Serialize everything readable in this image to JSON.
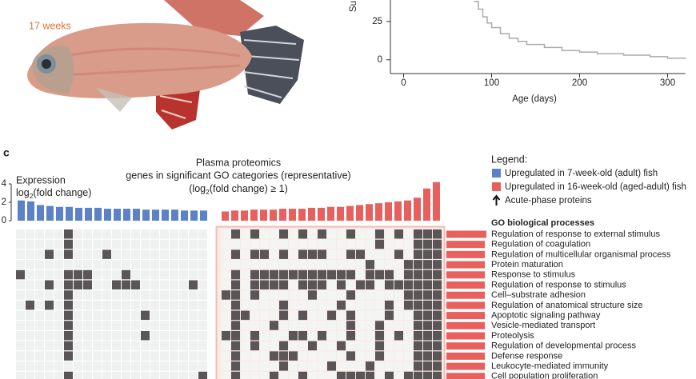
{
  "panel_a": {
    "age_label": "17 weeks"
  },
  "survival": {
    "type": "line",
    "y_axis_label": "Su",
    "x_axis_label": "Age (days)",
    "x": [
      80,
      85,
      90,
      95,
      100,
      110,
      120,
      130,
      140,
      160,
      180,
      200,
      220,
      250,
      280,
      300,
      320
    ],
    "values": [
      38,
      33,
      28,
      24,
      21,
      17,
      14,
      12,
      10,
      8,
      6,
      5,
      4,
      3,
      2,
      1,
      0.5
    ],
    "color": "#aaaaaa",
    "xlim": [
      -15,
      320
    ],
    "ylim": [
      -9,
      39
    ],
    "xticks": [
      0,
      100,
      200,
      300
    ],
    "yticks": [
      0,
      25
    ]
  },
  "panel_c": {
    "panel_label": "c",
    "title_lines": [
      "Plasma proteomics",
      "genes in significant GO categories (representative)"
    ],
    "title_fc": {
      "pre": "(log",
      "sub": "2",
      "post": "(fold change) ≥ 1)"
    },
    "y_label_line1": "Expression",
    "y_label_line2": {
      "pre": "log",
      "sub": "2",
      "post": "(fold change)"
    },
    "ylim": [
      0,
      4.5
    ],
    "yticks": [
      0,
      2,
      4
    ],
    "series": [
      {
        "name": "Upregulated in 7-week-old (adult) fish",
        "color": "#5b82c6",
        "values": [
          2.2,
          2.1,
          1.7,
          1.6,
          1.5,
          1.5,
          1.4,
          1.4,
          1.4,
          1.3,
          1.3,
          1.3,
          1.3,
          1.2,
          1.2,
          1.2,
          1.2,
          1.1,
          1.1,
          1.1
        ]
      },
      {
        "name": "Upregulated in 16-week-old (aged-adult) fish",
        "color": "#e8605e",
        "values": [
          1.0,
          1.1,
          1.1,
          1.2,
          1.2,
          1.2,
          1.3,
          1.3,
          1.3,
          1.4,
          1.4,
          1.5,
          1.5,
          1.6,
          1.7,
          1.8,
          1.9,
          2.0,
          2.1,
          2.2,
          2.5,
          3.5,
          4.2
        ]
      }
    ],
    "legend_title": "Legend:",
    "legend_arrow_label": "Acute-phase proteins",
    "go_title": "GO biological processes",
    "go_processes": [
      "Regulation of response to external stimulus",
      "Regulation of coagulation",
      "Regulation of multicellular organismal process",
      "Protein maturation",
      "Response to stimulus",
      "Regulation of response to stimulus",
      "Cell–substrate adhesion",
      "Regulation of anatomical structure size",
      "Apoptotic signaling pathway",
      "Vesicle-mediated transport",
      "Proteolysis",
      "Regulation of developmental process",
      "Defense response",
      "Leukocyte-mediated immunity",
      "Cell population proliferation"
    ],
    "go_bar_values": [
      10,
      9.6,
      9.6,
      9.6,
      9.6,
      9.6,
      9.6,
      9.6,
      9.6,
      9.6,
      9.6,
      9.6,
      9.6,
      9.6,
      9.6
    ],
    "membership": [
      [
        0,
        0,
        0,
        0,
        0,
        1,
        0,
        0,
        0,
        0,
        0,
        0,
        0,
        0,
        0,
        0,
        0,
        0,
        0,
        0,
        0,
        1,
        0,
        1,
        0,
        0,
        1,
        0,
        1,
        0,
        1,
        0,
        0,
        1,
        0,
        0,
        1,
        0,
        1,
        0,
        1,
        1,
        1
      ],
      [
        0,
        0,
        0,
        0,
        0,
        1,
        0,
        0,
        0,
        0,
        0,
        0,
        0,
        0,
        0,
        0,
        0,
        0,
        0,
        0,
        0,
        0,
        0,
        0,
        0,
        0,
        0,
        0,
        0,
        0,
        0,
        0,
        0,
        0,
        0,
        0,
        1,
        0,
        0,
        0,
        1,
        1,
        1
      ],
      [
        0,
        0,
        0,
        1,
        0,
        1,
        0,
        0,
        0,
        1,
        0,
        0,
        0,
        0,
        0,
        0,
        0,
        0,
        0,
        0,
        0,
        1,
        0,
        1,
        1,
        0,
        1,
        0,
        1,
        1,
        1,
        0,
        0,
        1,
        1,
        0,
        0,
        0,
        1,
        0,
        1,
        1,
        1
      ],
      [
        0,
        0,
        0,
        0,
        0,
        0,
        0,
        0,
        0,
        0,
        0,
        0,
        0,
        0,
        0,
        0,
        0,
        0,
        0,
        0,
        0,
        0,
        0,
        0,
        0,
        0,
        0,
        0,
        0,
        0,
        0,
        0,
        0,
        0,
        0,
        1,
        0,
        0,
        0,
        1,
        1,
        1,
        1
      ],
      [
        1,
        0,
        0,
        0,
        0,
        1,
        1,
        1,
        0,
        0,
        0,
        1,
        0,
        0,
        0,
        0,
        0,
        0,
        0,
        0,
        0,
        1,
        0,
        1,
        1,
        1,
        1,
        1,
        1,
        1,
        1,
        1,
        1,
        1,
        0,
        1,
        1,
        1,
        0,
        1,
        1,
        1,
        1
      ],
      [
        0,
        0,
        0,
        1,
        0,
        1,
        1,
        1,
        0,
        0,
        1,
        1,
        1,
        0,
        0,
        0,
        0,
        0,
        1,
        0,
        0,
        1,
        0,
        1,
        1,
        1,
        1,
        0,
        1,
        1,
        1,
        0,
        1,
        0,
        1,
        1,
        0,
        1,
        1,
        1,
        1,
        1,
        1
      ],
      [
        0,
        0,
        0,
        0,
        0,
        1,
        0,
        0,
        0,
        0,
        0,
        0,
        0,
        0,
        0,
        0,
        0,
        0,
        0,
        0,
        1,
        1,
        0,
        1,
        0,
        0,
        0,
        0,
        0,
        1,
        0,
        0,
        0,
        1,
        0,
        0,
        0,
        0,
        0,
        1,
        1,
        1,
        1
      ],
      [
        0,
        1,
        0,
        1,
        0,
        1,
        0,
        0,
        0,
        0,
        0,
        0,
        0,
        0,
        0,
        0,
        0,
        0,
        0,
        0,
        0,
        1,
        0,
        0,
        0,
        0,
        1,
        0,
        0,
        0,
        0,
        0,
        1,
        0,
        0,
        0,
        0,
        1,
        0,
        1,
        1,
        1,
        1
      ],
      [
        0,
        0,
        0,
        0,
        0,
        1,
        0,
        0,
        0,
        0,
        0,
        0,
        0,
        1,
        0,
        0,
        0,
        0,
        0,
        0,
        0,
        1,
        1,
        0,
        0,
        0,
        1,
        0,
        1,
        0,
        0,
        1,
        0,
        1,
        0,
        0,
        0,
        1,
        0,
        0,
        1,
        1,
        1
      ],
      [
        0,
        0,
        0,
        0,
        0,
        1,
        0,
        0,
        0,
        0,
        0,
        0,
        0,
        0,
        0,
        0,
        0,
        0,
        0,
        0,
        0,
        1,
        0,
        0,
        0,
        1,
        0,
        0,
        0,
        0,
        0,
        0,
        0,
        1,
        0,
        0,
        1,
        0,
        0,
        0,
        1,
        1,
        1
      ],
      [
        0,
        0,
        0,
        0,
        0,
        1,
        0,
        0,
        0,
        0,
        0,
        0,
        0,
        1,
        0,
        0,
        0,
        0,
        0,
        0,
        1,
        1,
        0,
        1,
        0,
        0,
        0,
        1,
        1,
        0,
        1,
        0,
        0,
        1,
        0,
        0,
        1,
        0,
        1,
        0,
        1,
        1,
        1
      ],
      [
        0,
        0,
        0,
        0,
        0,
        1,
        0,
        0,
        0,
        0,
        0,
        0,
        0,
        0,
        0,
        0,
        0,
        0,
        0,
        0,
        0,
        1,
        0,
        1,
        0,
        0,
        1,
        0,
        0,
        1,
        0,
        0,
        1,
        0,
        0,
        0,
        1,
        0,
        0,
        0,
        1,
        1,
        1
      ],
      [
        0,
        0,
        0,
        0,
        0,
        1,
        0,
        0,
        0,
        0,
        0,
        0,
        0,
        0,
        0,
        0,
        0,
        0,
        0,
        0,
        0,
        1,
        0,
        0,
        0,
        1,
        1,
        1,
        0,
        0,
        0,
        0,
        0,
        1,
        0,
        0,
        1,
        0,
        0,
        0,
        1,
        1,
        1
      ],
      [
        0,
        0,
        0,
        0,
        0,
        0,
        0,
        0,
        0,
        0,
        0,
        0,
        0,
        0,
        0,
        0,
        0,
        0,
        0,
        0,
        0,
        1,
        0,
        0,
        0,
        0,
        1,
        0,
        0,
        0,
        0,
        1,
        0,
        0,
        0,
        1,
        0,
        0,
        0,
        0,
        1,
        1,
        1
      ],
      [
        0,
        0,
        0,
        0,
        0,
        1,
        0,
        0,
        0,
        0,
        0,
        0,
        0,
        0,
        0,
        0,
        0,
        0,
        0,
        1,
        0,
        1,
        0,
        0,
        0,
        1,
        0,
        0,
        1,
        0,
        0,
        0,
        1,
        1,
        1,
        1,
        0,
        1,
        0,
        1,
        1,
        1,
        1
      ]
    ]
  }
}
